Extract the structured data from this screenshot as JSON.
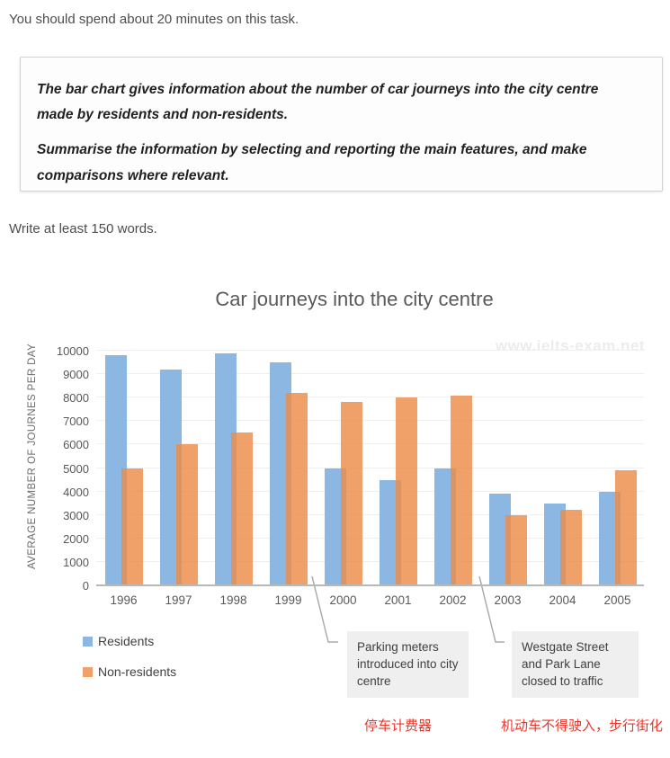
{
  "page": {
    "hint_top": "You should spend about 20 minutes on this task.",
    "task": {
      "paragraph1": "The bar chart gives information about the number of car journeys into the city centre made by residents and non-residents.",
      "paragraph2": "Summarise the information by selecting and reporting the main features, and make comparisons where relevant."
    },
    "hint_words": "Write at least 150 words."
  },
  "chart_data": {
    "type": "bar",
    "title": "Car journeys into the city centre",
    "xlabel": "",
    "ylabel": "AVERAGE NUMBER OF JOURNES PER DAY",
    "categories": [
      "1996",
      "1997",
      "1998",
      "1999",
      "2000",
      "2001",
      "2002",
      "2003",
      "2004",
      "2005"
    ],
    "series": [
      {
        "name": "Residents",
        "color": "#8cb7e2",
        "values": [
          9800,
          9200,
          9900,
          9500,
          5000,
          4500,
          5000,
          3900,
          3500,
          4000
        ]
      },
      {
        "name": "Non-residents",
        "color": "rgba(237,140,72,0.82)",
        "values": [
          5000,
          6000,
          6500,
          8200,
          7800,
          8000,
          8100,
          3000,
          3200,
          4900
        ]
      }
    ],
    "ylim": [
      0,
      10000
    ],
    "ytick_step": 1000,
    "grid": true,
    "legend_position": "bottom-left",
    "watermark": "www.ielts-exam.net",
    "annotations": [
      {
        "text": "Parking meters introduced into city centre",
        "between_categories": "1999 | 2000"
      },
      {
        "text": "Westgate Street and Park Lane closed to traffic",
        "between_categories": "2002 | 2003"
      }
    ],
    "notes_red": [
      "停车计费器",
      "机动车不得驶入，步行街化"
    ]
  }
}
